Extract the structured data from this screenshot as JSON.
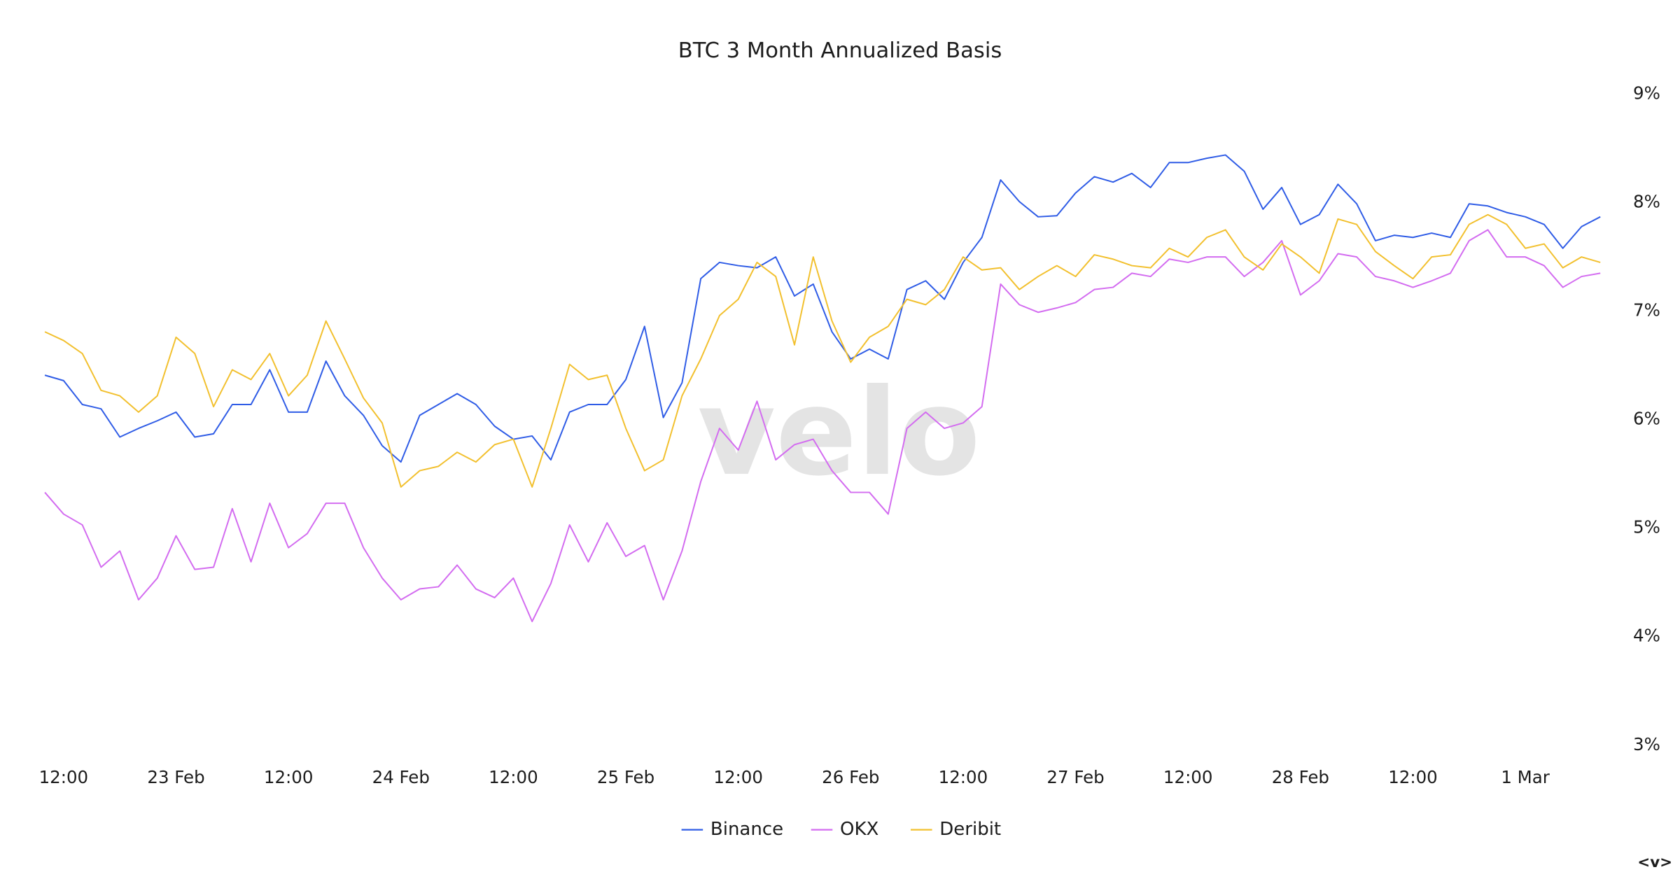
{
  "chart_data": {
    "type": "line",
    "title": "BTC 3 Month Annualized Basis",
    "watermark": "velo",
    "nav": "<v>",
    "categories": [
      null,
      "12:00",
      null,
      null,
      null,
      null,
      null,
      "23 Feb",
      null,
      null,
      null,
      null,
      null,
      "12:00",
      null,
      null,
      null,
      null,
      null,
      "24 Feb",
      null,
      null,
      null,
      null,
      null,
      "12:00",
      null,
      null,
      null,
      null,
      null,
      "25 Feb",
      null,
      null,
      null,
      null,
      null,
      "12:00",
      null,
      null,
      null,
      null,
      null,
      "26 Feb",
      null,
      null,
      null,
      null,
      null,
      "12:00",
      null,
      null,
      null,
      null,
      null,
      "27 Feb",
      null,
      null,
      null,
      null,
      null,
      "12:00",
      null,
      null,
      null,
      null,
      null,
      "28 Feb",
      null,
      null,
      null,
      null,
      null,
      "12:00",
      null,
      null,
      null,
      null,
      null,
      "1 Mar",
      null,
      null,
      null,
      null
    ],
    "series": [
      {
        "name": "Binance",
        "color": "#2f5ce6",
        "values": [
          6.41,
          6.36,
          6.14,
          6.1,
          5.84,
          5.92,
          5.99,
          6.07,
          5.84,
          5.87,
          6.14,
          6.14,
          6.46,
          6.07,
          6.07,
          6.54,
          6.22,
          6.04,
          5.76,
          5.61,
          6.04,
          6.14,
          6.24,
          6.14,
          5.94,
          5.82,
          5.85,
          5.63,
          6.07,
          6.14,
          6.14,
          6.37,
          6.86,
          6.02,
          6.34,
          7.3,
          7.45,
          7.42,
          7.4,
          7.5,
          7.14,
          7.25,
          6.81,
          6.56,
          6.65,
          6.56,
          7.2,
          7.28,
          7.11,
          7.45,
          7.68,
          8.21,
          8.01,
          7.87,
          7.88,
          8.09,
          8.24,
          8.19,
          8.27,
          8.14,
          8.37,
          8.37,
          8.41,
          8.44,
          8.29,
          7.94,
          8.14,
          7.8,
          7.89,
          8.17,
          7.99,
          7.65,
          7.7,
          7.68,
          7.72,
          7.68,
          7.99,
          7.97,
          7.91,
          7.87,
          7.8,
          7.58,
          7.78,
          7.87
        ]
      },
      {
        "name": "OKX",
        "color": "#d36cf0",
        "values": [
          5.33,
          5.13,
          5.03,
          4.64,
          4.79,
          4.34,
          4.54,
          4.93,
          4.62,
          4.64,
          5.18,
          4.69,
          5.23,
          4.82,
          4.95,
          5.23,
          5.23,
          4.82,
          4.54,
          4.34,
          4.44,
          4.46,
          4.66,
          4.44,
          4.36,
          4.54,
          4.14,
          4.49,
          5.03,
          4.69,
          5.05,
          4.74,
          4.84,
          4.34,
          4.79,
          5.43,
          5.92,
          5.72,
          6.17,
          5.63,
          5.77,
          5.82,
          5.53,
          5.33,
          5.33,
          5.13,
          5.92,
          6.07,
          5.92,
          5.97,
          6.12,
          7.25,
          7.06,
          6.99,
          7.03,
          7.08,
          7.2,
          7.22,
          7.35,
          7.32,
          7.48,
          7.45,
          7.5,
          7.5,
          7.32,
          7.45,
          7.65,
          7.15,
          7.28,
          7.53,
          7.5,
          7.32,
          7.28,
          7.22,
          7.28,
          7.35,
          7.65,
          7.75,
          7.5,
          7.5,
          7.42,
          7.22,
          7.32,
          7.35
        ]
      },
      {
        "name": "Deribit",
        "color": "#f2c02e",
        "values": [
          6.81,
          6.73,
          6.61,
          6.27,
          6.22,
          6.07,
          6.22,
          6.76,
          6.61,
          6.12,
          6.46,
          6.37,
          6.61,
          6.22,
          6.41,
          6.91,
          6.56,
          6.2,
          5.97,
          5.38,
          5.53,
          5.57,
          5.7,
          5.61,
          5.77,
          5.82,
          5.38,
          5.92,
          6.51,
          6.37,
          6.41,
          5.92,
          5.53,
          5.63,
          6.22,
          6.56,
          6.96,
          7.11,
          7.45,
          7.32,
          6.69,
          7.5,
          6.91,
          6.53,
          6.76,
          6.86,
          7.11,
          7.06,
          7.2,
          7.5,
          7.38,
          7.4,
          7.2,
          7.32,
          7.42,
          7.32,
          7.52,
          7.48,
          7.42,
          7.4,
          7.58,
          7.5,
          7.68,
          7.75,
          7.5,
          7.38,
          7.62,
          7.5,
          7.35,
          7.85,
          7.8,
          7.55,
          7.42,
          7.3,
          7.5,
          7.52,
          7.8,
          7.89,
          7.8,
          7.58,
          7.62,
          7.4,
          7.5,
          7.45
        ]
      }
    ],
    "ylim": [
      3,
      9
    ],
    "yticks": [
      {
        "value": 3,
        "label": "3%"
      },
      {
        "value": 4,
        "label": "4%"
      },
      {
        "value": 5,
        "label": "5%"
      },
      {
        "value": 6,
        "label": "6%"
      },
      {
        "value": 7,
        "label": "7%"
      },
      {
        "value": 8,
        "label": "8%"
      },
      {
        "value": 9,
        "label": "9%"
      }
    ],
    "grid": false,
    "legend": "bottom"
  }
}
